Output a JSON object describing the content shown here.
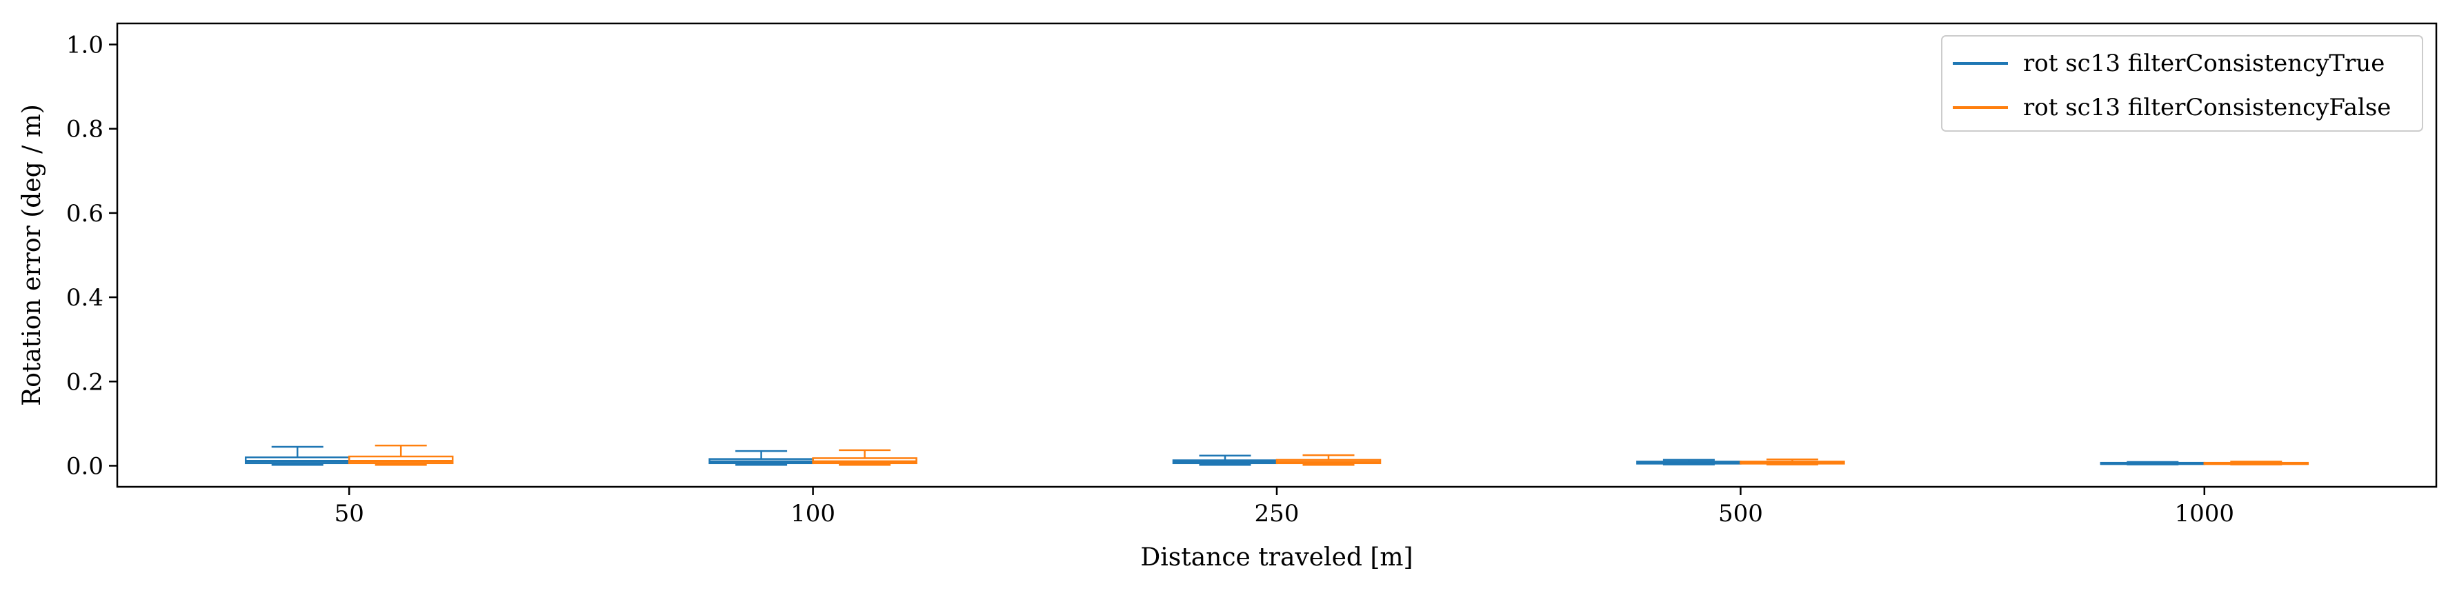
{
  "chart_data": {
    "type": "box",
    "title": "",
    "xlabel": "Distance traveled [m]",
    "ylabel": "Rotation error (deg / m)",
    "ylim": [
      -0.05,
      1.05
    ],
    "yticks": [
      0.0,
      0.2,
      0.4,
      0.6,
      0.8,
      1.0
    ],
    "ytick_labels": [
      "0.0",
      "0.2",
      "0.4",
      "0.6",
      "0.8",
      "1.0"
    ],
    "categories": [
      "50",
      "100",
      "250",
      "500",
      "1000"
    ],
    "legend": "top-right",
    "grid": false,
    "series": [
      {
        "name": "rot sc13 filterConsistencyTrue",
        "color": "#1f77b4",
        "boxes": [
          {
            "whislo": 0.002,
            "q1": 0.006,
            "med": 0.011,
            "q3": 0.02,
            "whishi": 0.045
          },
          {
            "whislo": 0.002,
            "q1": 0.006,
            "med": 0.01,
            "q3": 0.016,
            "whishi": 0.035
          },
          {
            "whislo": 0.002,
            "q1": 0.006,
            "med": 0.009,
            "q3": 0.013,
            "whishi": 0.024
          },
          {
            "whislo": 0.003,
            "q1": 0.005,
            "med": 0.007,
            "q3": 0.01,
            "whishi": 0.014
          },
          {
            "whislo": 0.003,
            "q1": 0.004,
            "med": 0.005,
            "q3": 0.007,
            "whishi": 0.009
          }
        ]
      },
      {
        "name": "rot sc13 filterConsistencyFalse",
        "color": "#ff7f0e",
        "boxes": [
          {
            "whislo": 0.002,
            "q1": 0.006,
            "med": 0.011,
            "q3": 0.022,
            "whishi": 0.048
          },
          {
            "whislo": 0.002,
            "q1": 0.006,
            "med": 0.01,
            "q3": 0.018,
            "whishi": 0.037
          },
          {
            "whislo": 0.002,
            "q1": 0.006,
            "med": 0.009,
            "q3": 0.014,
            "whishi": 0.025
          },
          {
            "whislo": 0.003,
            "q1": 0.005,
            "med": 0.007,
            "q3": 0.01,
            "whishi": 0.015
          },
          {
            "whislo": 0.003,
            "q1": 0.004,
            "med": 0.005,
            "q3": 0.007,
            "whishi": 0.01
          }
        ]
      }
    ]
  }
}
